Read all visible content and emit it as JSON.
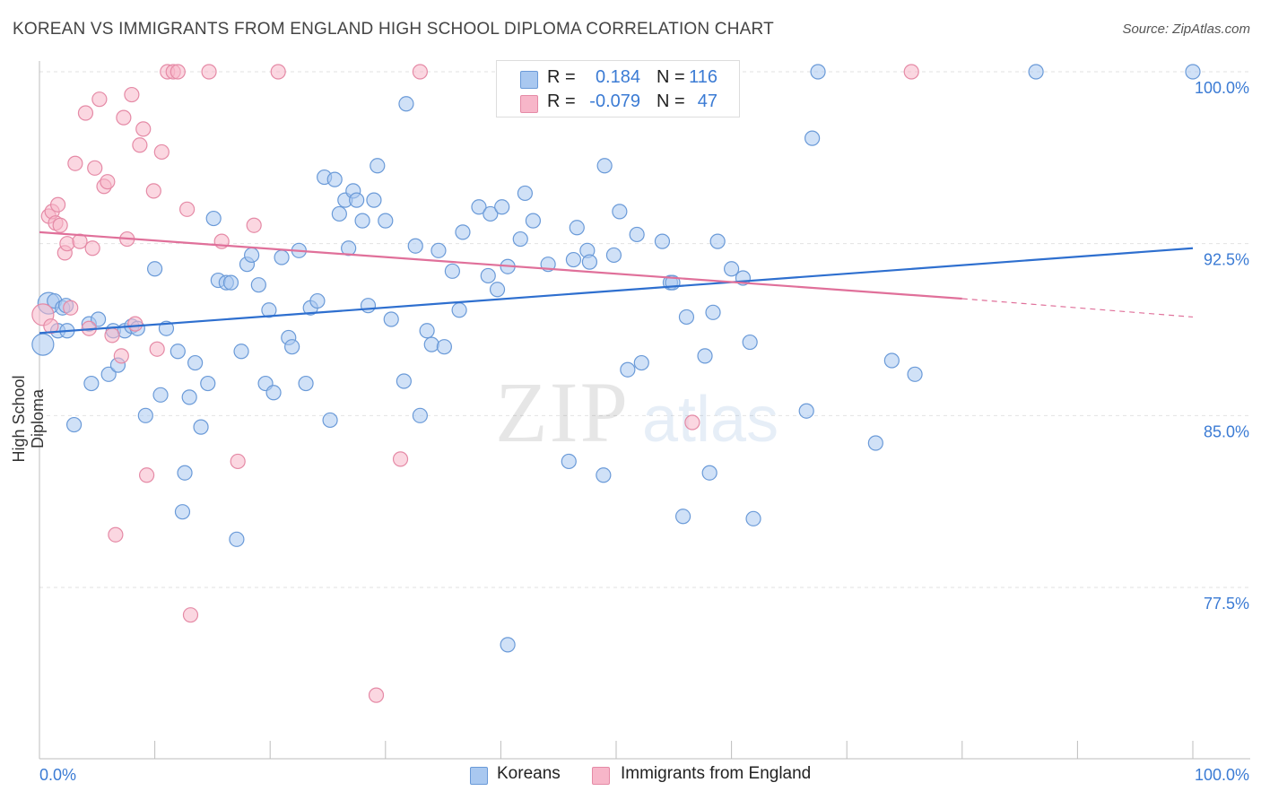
{
  "title": "KOREAN VS IMMIGRANTS FROM ENGLAND HIGH SCHOOL DIPLOMA CORRELATION CHART",
  "source": "Source: ZipAtlas.com",
  "watermark": {
    "zip": "ZIP",
    "atlas": "atlas"
  },
  "legend_top": {
    "rows": [
      {
        "r_label": "R =",
        "r_value": "0.184",
        "n_label": "N =",
        "n_value": "116",
        "color": "#a9c8f0"
      },
      {
        "r_label": "R =",
        "r_value": "-0.079",
        "n_label": "N =",
        "n_value": "47",
        "color": "#f7b6c9"
      }
    ]
  },
  "chart_data": {
    "type": "scatter",
    "title": "KOREAN VS IMMIGRANTS FROM ENGLAND HIGH SCHOOL DIPLOMA CORRELATION CHART",
    "xlabel": "",
    "ylabel": "High School Diploma",
    "xlim": [
      0,
      100
    ],
    "ylim": [
      70.5,
      101
    ],
    "x_tick_labels": [
      "0.0%",
      "100.0%"
    ],
    "y_ticks": [
      77.5,
      85.0,
      92.5,
      100.0
    ],
    "y_tick_labels": [
      "77.5%",
      "85.0%",
      "92.5%",
      "100.0%"
    ],
    "grid": true,
    "legend_position": "bottom",
    "series": [
      {
        "name": "Koreans",
        "color": "#a9c8f0",
        "stroke": "#6a9ad8",
        "trend": {
          "x": [
            0,
            100
          ],
          "y": [
            88.6,
            92.3
          ],
          "color": "#2e6fcf"
        },
        "points": [
          [
            0.3,
            88.1
          ],
          [
            0.8,
            89.9
          ],
          [
            1.3,
            90.0
          ],
          [
            1.6,
            88.7
          ],
          [
            2.0,
            89.7
          ],
          [
            2.3,
            89.8
          ],
          [
            2.4,
            88.7
          ],
          [
            3.0,
            84.6
          ],
          [
            4.3,
            89.0
          ],
          [
            4.5,
            86.4
          ],
          [
            5.1,
            89.2
          ],
          [
            6.0,
            86.8
          ],
          [
            6.4,
            88.7
          ],
          [
            6.8,
            87.2
          ],
          [
            7.4,
            88.7
          ],
          [
            8.0,
            88.9
          ],
          [
            8.5,
            88.8
          ],
          [
            9.2,
            85.0
          ],
          [
            10.0,
            91.4
          ],
          [
            10.5,
            85.9
          ],
          [
            11.0,
            88.8
          ],
          [
            12.0,
            87.8
          ],
          [
            12.4,
            80.8
          ],
          [
            12.6,
            82.5
          ],
          [
            13.0,
            85.8
          ],
          [
            13.5,
            87.3
          ],
          [
            14.0,
            84.5
          ],
          [
            14.6,
            86.4
          ],
          [
            15.1,
            93.6
          ],
          [
            15.5,
            90.9
          ],
          [
            16.2,
            90.8
          ],
          [
            16.6,
            90.8
          ],
          [
            17.1,
            79.6
          ],
          [
            17.5,
            87.8
          ],
          [
            18.0,
            91.6
          ],
          [
            18.4,
            92.0
          ],
          [
            19.0,
            90.7
          ],
          [
            19.6,
            86.4
          ],
          [
            19.9,
            89.6
          ],
          [
            20.3,
            86.0
          ],
          [
            21.0,
            91.9
          ],
          [
            21.6,
            88.4
          ],
          [
            21.9,
            88.0
          ],
          [
            22.5,
            92.2
          ],
          [
            23.1,
            86.4
          ],
          [
            23.5,
            89.7
          ],
          [
            24.1,
            90.0
          ],
          [
            24.7,
            95.4
          ],
          [
            25.2,
            84.8
          ],
          [
            25.6,
            95.3
          ],
          [
            26.0,
            93.8
          ],
          [
            26.5,
            94.4
          ],
          [
            26.8,
            92.3
          ],
          [
            27.2,
            94.8
          ],
          [
            27.5,
            94.4
          ],
          [
            28.0,
            93.5
          ],
          [
            28.5,
            89.8
          ],
          [
            29.0,
            94.4
          ],
          [
            29.3,
            95.9
          ],
          [
            30.0,
            93.5
          ],
          [
            30.5,
            89.2
          ],
          [
            31.6,
            86.5
          ],
          [
            31.8,
            98.6
          ],
          [
            32.6,
            92.4
          ],
          [
            33.0,
            85.0
          ],
          [
            33.6,
            88.7
          ],
          [
            34.0,
            88.1
          ],
          [
            34.6,
            92.2
          ],
          [
            35.1,
            88.0
          ],
          [
            35.8,
            91.3
          ],
          [
            36.4,
            89.6
          ],
          [
            36.7,
            93.0
          ],
          [
            38.1,
            94.1
          ],
          [
            38.9,
            91.1
          ],
          [
            39.1,
            93.8
          ],
          [
            39.7,
            90.5
          ],
          [
            40.1,
            94.1
          ],
          [
            40.6,
            91.5
          ],
          [
            41.7,
            92.7
          ],
          [
            42.1,
            94.7
          ],
          [
            42.8,
            93.5
          ],
          [
            44.1,
            91.6
          ],
          [
            45.9,
            83.0
          ],
          [
            46.3,
            91.8
          ],
          [
            46.6,
            93.2
          ],
          [
            47.5,
            92.2
          ],
          [
            47.7,
            91.7
          ],
          [
            48.9,
            82.4
          ],
          [
            49.0,
            95.9
          ],
          [
            49.8,
            92.0
          ],
          [
            50.3,
            93.9
          ],
          [
            51.0,
            87.0
          ],
          [
            51.8,
            92.9
          ],
          [
            52.2,
            87.3
          ],
          [
            54.0,
            92.6
          ],
          [
            54.7,
            90.8
          ],
          [
            54.9,
            90.8
          ],
          [
            55.8,
            80.6
          ],
          [
            56.1,
            89.3
          ],
          [
            57.7,
            87.6
          ],
          [
            58.1,
            82.5
          ],
          [
            58.4,
            89.5
          ],
          [
            58.8,
            92.6
          ],
          [
            60.0,
            91.4
          ],
          [
            61.0,
            91.0
          ],
          [
            61.6,
            88.2
          ],
          [
            61.9,
            80.5
          ],
          [
            66.5,
            85.2
          ],
          [
            67.0,
            97.1
          ],
          [
            67.5,
            100.0
          ],
          [
            72.5,
            83.8
          ],
          [
            73.9,
            87.4
          ],
          [
            75.9,
            86.8
          ],
          [
            86.4,
            100.0
          ],
          [
            100.0,
            100.0
          ],
          [
            40.6,
            75.0
          ]
        ]
      },
      {
        "name": "Immigrants from England",
        "color": "#f7b6c9",
        "stroke": "#e58aa6",
        "trend": {
          "x": [
            0,
            80
          ],
          "y": [
            93.0,
            90.1
          ],
          "color": "#e0709a",
          "dashed_to": [
            100,
            89.3
          ]
        },
        "points": [
          [
            0.3,
            89.4
          ],
          [
            0.8,
            93.7
          ],
          [
            1.1,
            93.9
          ],
          [
            1.4,
            93.4
          ],
          [
            1.6,
            94.2
          ],
          [
            1.8,
            93.3
          ],
          [
            2.2,
            92.1
          ],
          [
            2.4,
            92.5
          ],
          [
            2.7,
            89.7
          ],
          [
            3.1,
            96.0
          ],
          [
            3.5,
            92.6
          ],
          [
            4.0,
            98.2
          ],
          [
            4.3,
            88.8
          ],
          [
            4.6,
            92.3
          ],
          [
            4.8,
            95.8
          ],
          [
            5.2,
            98.8
          ],
          [
            5.6,
            95.0
          ],
          [
            5.9,
            95.2
          ],
          [
            6.3,
            88.5
          ],
          [
            6.6,
            79.8
          ],
          [
            7.1,
            87.6
          ],
          [
            7.3,
            98.0
          ],
          [
            7.6,
            92.7
          ],
          [
            8.0,
            99.0
          ],
          [
            8.3,
            89.0
          ],
          [
            8.7,
            96.8
          ],
          [
            9.0,
            97.5
          ],
          [
            9.3,
            82.4
          ],
          [
            9.9,
            94.8
          ],
          [
            10.2,
            87.9
          ],
          [
            10.6,
            96.5
          ],
          [
            11.1,
            100.0
          ],
          [
            11.6,
            100.0
          ],
          [
            12.0,
            100.0
          ],
          [
            12.8,
            94.0
          ],
          [
            13.1,
            76.3
          ],
          [
            14.7,
            100.0
          ],
          [
            15.8,
            92.6
          ],
          [
            17.2,
            83.0
          ],
          [
            18.6,
            93.3
          ],
          [
            20.7,
            100.0
          ],
          [
            29.2,
            72.8
          ],
          [
            31.3,
            83.1
          ],
          [
            33.0,
            100.0
          ],
          [
            56.6,
            84.7
          ],
          [
            75.6,
            100.0
          ],
          [
            1.0,
            88.9
          ]
        ]
      }
    ]
  }
}
